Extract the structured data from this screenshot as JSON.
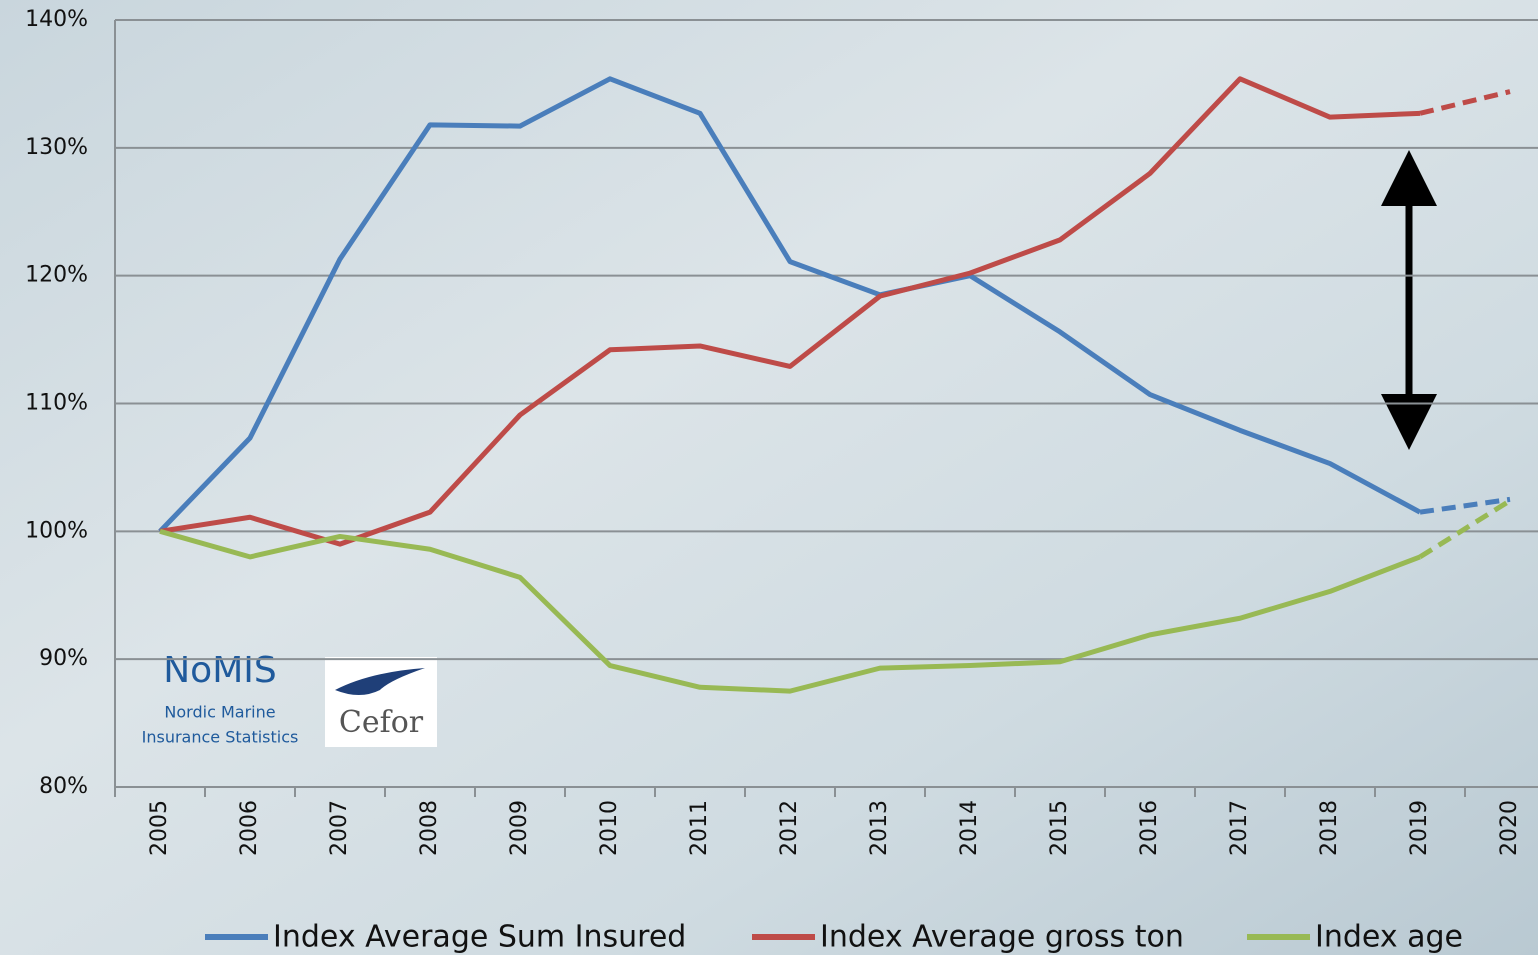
{
  "chart_data": {
    "type": "line",
    "categories": [
      "2005",
      "2006",
      "2007",
      "2008",
      "2009",
      "2010",
      "2011",
      "2012",
      "2013",
      "2014",
      "2015",
      "2016",
      "2017",
      "2018",
      "2019",
      "2020"
    ],
    "series": [
      {
        "name": "Index Average Sum Insured",
        "color": "#4a7ebb",
        "values": [
          100,
          107.3,
          121.3,
          131.8,
          131.7,
          135.4,
          132.7,
          121.1,
          118.5,
          120.0,
          115.6,
          110.7,
          107.9,
          105.3,
          101.5,
          102.5
        ]
      },
      {
        "name": "Index Average gross ton",
        "color": "#be4b48",
        "values": [
          100,
          101.1,
          99.0,
          101.5,
          109.1,
          114.2,
          114.5,
          112.9,
          118.4,
          120.2,
          122.8,
          128.0,
          135.4,
          132.4,
          132.7,
          134.4
        ]
      },
      {
        "name": "Index age",
        "color": "#98b954",
        "values": [
          100,
          98.0,
          99.6,
          98.6,
          96.4,
          89.5,
          87.8,
          87.5,
          89.3,
          89.5,
          89.8,
          91.9,
          93.2,
          95.3,
          98.0,
          102.4
        ]
      }
    ],
    "dashed_last_segment": true,
    "ylim": [
      80,
      140
    ],
    "yticks": [
      {
        "value": 80,
        "label": "80%"
      },
      {
        "value": 90,
        "label": "90%"
      },
      {
        "value": 100,
        "label": "100%"
      },
      {
        "value": 110,
        "label": "110%"
      },
      {
        "value": 120,
        "label": "120%"
      },
      {
        "value": 130,
        "label": "130%"
      },
      {
        "value": 140,
        "label": "140%"
      }
    ],
    "grid": true,
    "legend": "bottom",
    "annotations": [
      "NoMIS",
      "Nordic Marine",
      "Insurance Statistics",
      "Cefor"
    ]
  }
}
